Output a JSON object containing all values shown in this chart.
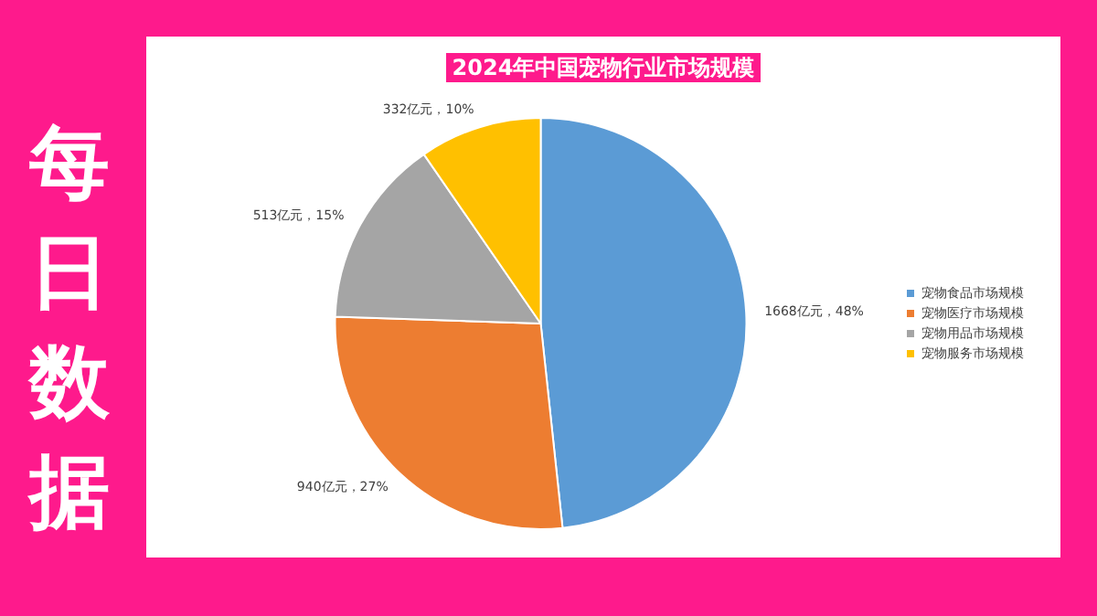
{
  "chart_data": {
    "type": "pie",
    "title": "2024年中国宠物行业市场规模",
    "categories": [
      "宠物食品市场规模",
      "宠物医疗市场规模",
      "宠物用品市场规模",
      "宠物服务市场规模"
    ],
    "values": [
      1668,
      940,
      513,
      332
    ],
    "colors": [
      "#5b9bd5",
      "#ed7d31",
      "#a5a5a5",
      "#ffc000"
    ],
    "value_labels": [
      "1668亿元，48%",
      "940亿元，27%",
      "513亿元，15%",
      "332亿元，10%"
    ],
    "legend": "right",
    "annotations": [
      "每日数据"
    ]
  }
}
